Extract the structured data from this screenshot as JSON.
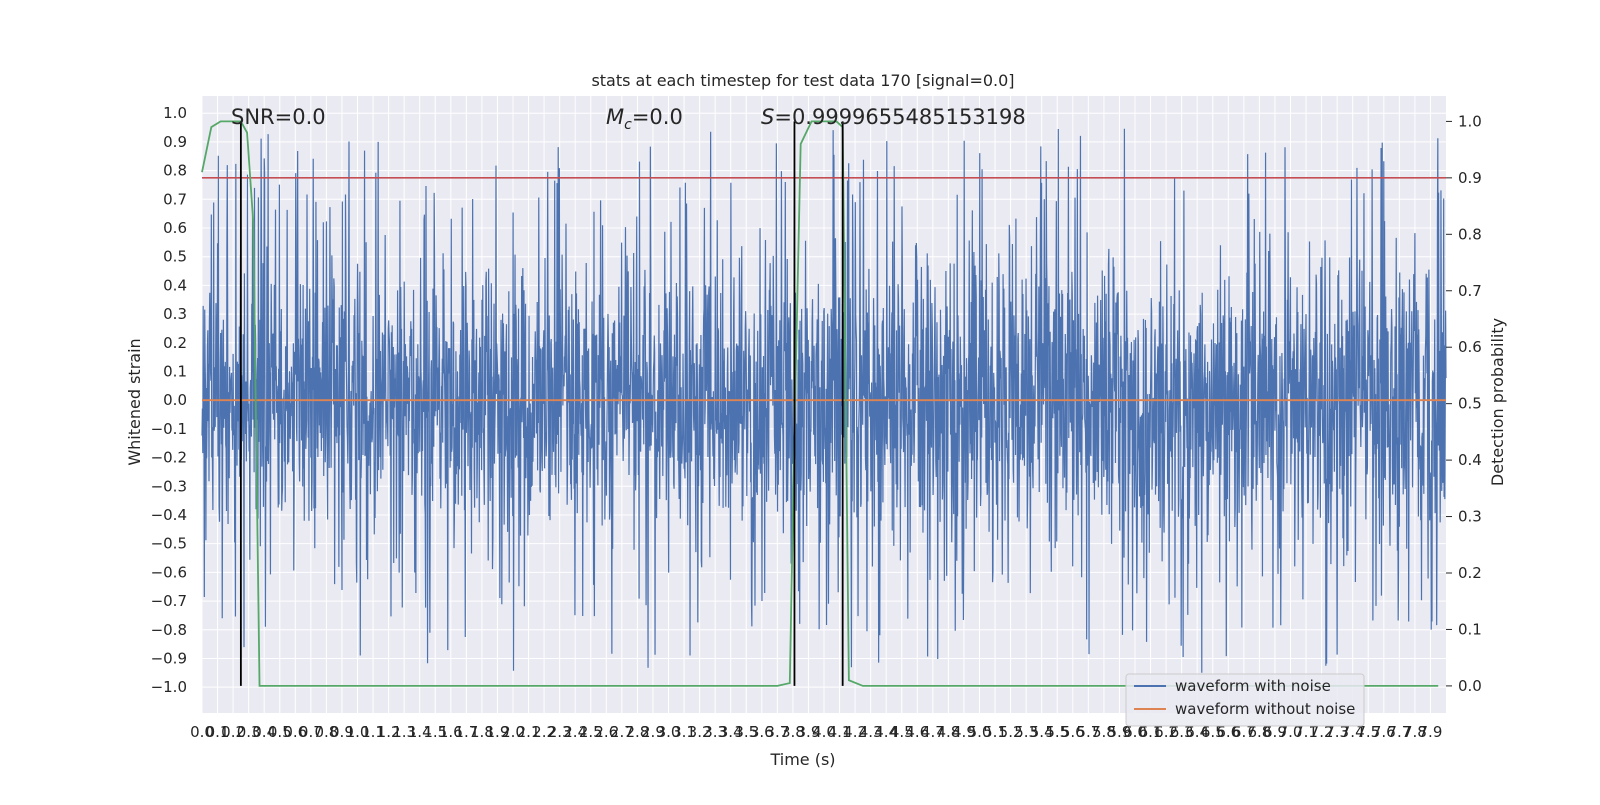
{
  "chart_data": {
    "type": "line",
    "title": "stats at each timestep for test data 170 [signal=0.0]",
    "xlabel": "Time (s)",
    "ylabel": "Whitened strain",
    "y2label": "Detection probability",
    "xlim": [
      0.0,
      8.0
    ],
    "ylim": [
      -1.09,
      1.06
    ],
    "y2lim": [
      -0.048,
      1.045
    ],
    "x_tick_step": 0.1,
    "x_tick_labels": [
      "0.0",
      "0.1",
      "0.2",
      "0.3",
      "0.4",
      "0.5",
      "0.6",
      "0.7",
      "0.8",
      "0.9",
      "1.0",
      "1.1",
      "1.2",
      "1.3",
      "1.4",
      "1.5",
      "1.6",
      "1.7",
      "1.8",
      "1.9",
      "2.0",
      "2.1",
      "2.2",
      "2.3",
      "2.4",
      "2.5",
      "2.6",
      "2.7",
      "2.8",
      "2.9",
      "3.0",
      "3.1",
      "3.2",
      "3.3",
      "3.4",
      "3.5",
      "3.6",
      "3.7",
      "3.8",
      "3.9",
      "4.0",
      "4.1",
      "4.2",
      "4.3",
      "4.4",
      "4.5",
      "4.6",
      "4.7",
      "4.8",
      "4.9",
      "5.0",
      "5.1",
      "5.2",
      "5.3",
      "5.4",
      "5.5",
      "5.6",
      "5.7",
      "5.8",
      "5.9",
      "6.0",
      "6.1",
      "6.2",
      "6.3",
      "6.4",
      "6.5",
      "6.6",
      "6.7",
      "6.8",
      "6.9",
      "7.0",
      "7.1",
      "7.2",
      "7.3",
      "7.4",
      "7.5",
      "7.6",
      "7.7",
      "7.8",
      "7.9"
    ],
    "y_tick_labels": [
      "1.0",
      "0.9",
      "0.8",
      "0.7",
      "0.6",
      "0.5",
      "0.4",
      "0.3",
      "0.2",
      "0.1",
      "0.0",
      "−0.1",
      "−0.2",
      "−0.3",
      "−0.4",
      "−0.5",
      "−0.6",
      "−0.7",
      "−0.8",
      "−0.9",
      "−1.0"
    ],
    "y2_tick_labels": [
      "1.0",
      "0.9",
      "0.8",
      "0.7",
      "0.6",
      "0.5",
      "0.4",
      "0.3",
      "0.2",
      "0.1",
      "0.0"
    ],
    "grid": true,
    "legend_position": "lower right",
    "legend": [
      "waveform with noise",
      "waveform without noise"
    ],
    "annotations": {
      "snr": "SNR=0.0",
      "mc_symbol": "M",
      "mc_subscript": "c",
      "mc_value": "=0.0",
      "s_symbol": "S",
      "s_value": "=0.9999655485153198"
    },
    "series": [
      {
        "name": "waveform with noise",
        "color": "#4c72b0",
        "description": "dense noise roughly within ±0.5 with spikes to about ±0.95"
      },
      {
        "name": "waveform without noise",
        "color": "#dd8452",
        "y_constant": 0.0
      }
    ],
    "threshold": {
      "axis": "right",
      "value": 0.9,
      "color": "#c44e52"
    },
    "detection_probability": {
      "color": "#55a868",
      "x": [
        0.0,
        0.06,
        0.12,
        0.25,
        0.29,
        0.33,
        0.37,
        0.5,
        3.7,
        3.78,
        3.81,
        3.85,
        3.92,
        4.08,
        4.12,
        4.16,
        4.25,
        7.95
      ],
      "y": [
        0.91,
        0.99,
        1.0,
        1.0,
        0.98,
        0.82,
        0.0,
        0.0,
        0.0,
        0.005,
        0.45,
        0.96,
        1.0,
        1.0,
        0.99,
        0.01,
        0.0,
        0.0
      ]
    },
    "detection_markers": {
      "color": "#000000",
      "x": [
        0.25,
        3.81,
        4.12
      ]
    },
    "colors": {
      "background": "#eaeaf2",
      "grid": "#ffffff"
    }
  }
}
